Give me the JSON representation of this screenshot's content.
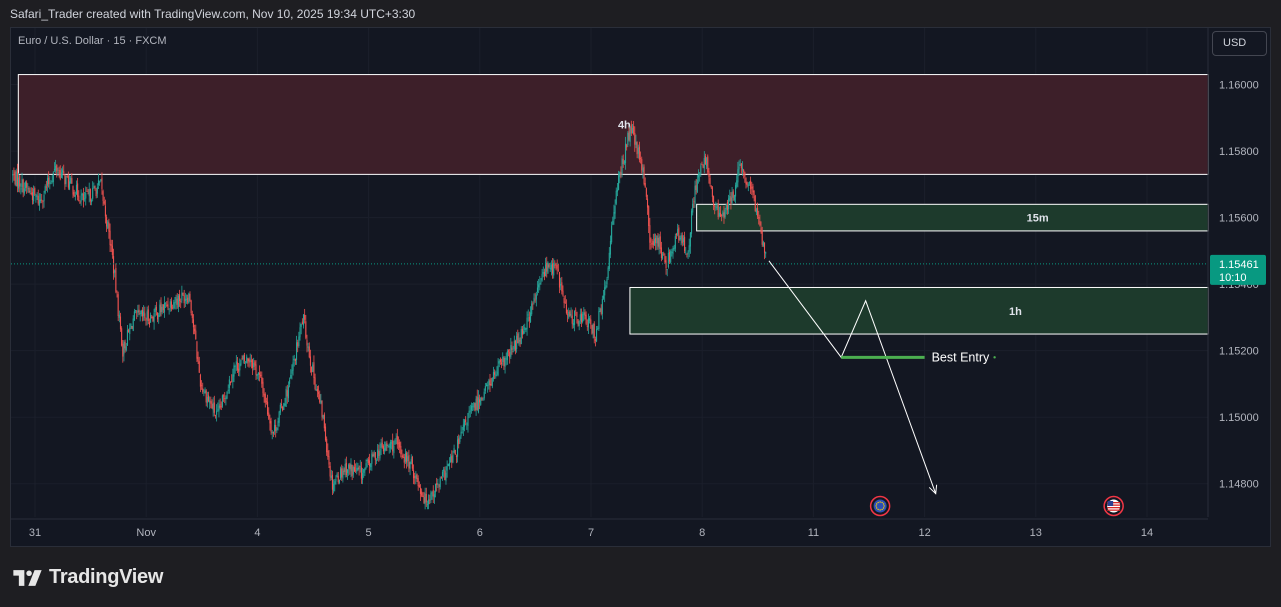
{
  "header": {
    "attribution": "Safari_Trader created with TradingView.com, Nov 10, 2025 19:34 UTC+3:30",
    "symbol_title": "Euro / U.S. Dollar · 15 · FXCM",
    "currency_button": "USD"
  },
  "brand": {
    "name": "TradingView"
  },
  "colors": {
    "background": "#131722",
    "up_candle": "#26a69a",
    "down_candle": "#ef5350",
    "zone_4h": "#3d1f29",
    "zone_demand": "#1d3a2c",
    "best_entry": "#4caf50",
    "price_badge": "#089981"
  },
  "chart_data": {
    "type": "candlestick",
    "symbol": "Euro / U.S. Dollar",
    "timeframe": "15",
    "source": "FXCM",
    "x_axis": {
      "tick_labels": [
        {
          "label": "31",
          "day": 0
        },
        {
          "label": "Nov",
          "day": 1
        },
        {
          "label": "4",
          "day": 2
        },
        {
          "label": "5",
          "day": 3
        },
        {
          "label": "6",
          "day": 4
        },
        {
          "label": "7",
          "day": 5
        },
        {
          "label": "8",
          "day": 6
        },
        {
          "label": "11",
          "day": 7
        },
        {
          "label": "12",
          "day": 8
        },
        {
          "label": "13",
          "day": 9
        },
        {
          "label": "14",
          "day": 10
        }
      ]
    },
    "y_axis": {
      "ylim": [
        1.147,
        1.1617
      ],
      "tick_labels": [
        "1.16000",
        "1.15800",
        "1.15600",
        "1.15400",
        "1.15200",
        "1.15000",
        "1.14800"
      ],
      "tick_values": [
        1.16,
        1.158,
        1.156,
        1.154,
        1.152,
        1.15,
        1.148
      ]
    },
    "price_path": [
      [
        -0.2,
        1.1573
      ],
      [
        0.05,
        1.1565
      ],
      [
        0.2,
        1.1575
      ],
      [
        0.45,
        1.1565
      ],
      [
        0.6,
        1.157
      ],
      [
        0.7,
        1.155
      ],
      [
        0.8,
        1.152
      ],
      [
        0.9,
        1.153
      ],
      [
        1.05,
        1.153
      ],
      [
        1.25,
        1.1535
      ],
      [
        1.4,
        1.1537
      ],
      [
        1.5,
        1.151
      ],
      [
        1.65,
        1.15
      ],
      [
        1.8,
        1.1515
      ],
      [
        1.95,
        1.1518
      ],
      [
        2.05,
        1.151
      ],
      [
        2.15,
        1.1495
      ],
      [
        2.3,
        1.151
      ],
      [
        2.42,
        1.153
      ],
      [
        2.5,
        1.1515
      ],
      [
        2.6,
        1.15
      ],
      [
        2.68,
        1.148
      ],
      [
        2.8,
        1.1485
      ],
      [
        2.95,
        1.1483
      ],
      [
        3.1,
        1.149
      ],
      [
        3.25,
        1.1492
      ],
      [
        3.4,
        1.1485
      ],
      [
        3.52,
        1.1475
      ],
      [
        3.65,
        1.148
      ],
      [
        3.8,
        1.149
      ],
      [
        3.9,
        1.15
      ],
      [
        4.0,
        1.1505
      ],
      [
        4.15,
        1.1513
      ],
      [
        4.3,
        1.152
      ],
      [
        4.45,
        1.153
      ],
      [
        4.6,
        1.1545
      ],
      [
        4.7,
        1.1545
      ],
      [
        4.8,
        1.153
      ],
      [
        4.95,
        1.153
      ],
      [
        5.05,
        1.1525
      ],
      [
        5.15,
        1.154
      ],
      [
        5.2,
        1.156
      ],
      [
        5.3,
        1.1578
      ],
      [
        5.37,
        1.1587
      ],
      [
        5.45,
        1.1577
      ],
      [
        5.5,
        1.157
      ],
      [
        5.55,
        1.155
      ],
      [
        5.6,
        1.1555
      ],
      [
        5.68,
        1.1545
      ],
      [
        5.78,
        1.1555
      ],
      [
        5.88,
        1.155
      ],
      [
        5.95,
        1.157
      ],
      [
        6.05,
        1.1578
      ],
      [
        6.1,
        1.1565
      ],
      [
        6.17,
        1.156
      ],
      [
        6.27,
        1.1565
      ],
      [
        6.35,
        1.1575
      ],
      [
        6.42,
        1.157
      ],
      [
        6.48,
        1.1565
      ],
      [
        6.53,
        1.1558
      ],
      [
        6.58,
        1.1548
      ]
    ],
    "zones": [
      {
        "label": "4h",
        "day_from": -0.15,
        "day_to": 10.55,
        "price_from": 1.1573,
        "price_to": 1.1603
      },
      {
        "label": "15m",
        "day_from": 5.95,
        "day_to": 10.55,
        "price_from": 1.1556,
        "price_to": 1.1564
      },
      {
        "label": "1h",
        "day_from": 5.35,
        "day_to": 10.55,
        "price_from": 1.1525,
        "price_to": 1.1539
      }
    ],
    "projection_path": [
      [
        6.6,
        1.1547
      ],
      [
        7.25,
        1.1518
      ],
      [
        7.47,
        1.1535
      ],
      [
        8.1,
        1.1477
      ]
    ],
    "best_entry": {
      "label": "Best Entry",
      "price": 1.1518,
      "day_from": 7.25,
      "day_to": 8.0
    },
    "last_price": {
      "value": "1.15461",
      "price": 1.15461,
      "countdown": "10:10"
    },
    "events": [
      {
        "day": 7.6,
        "flag": "EU"
      },
      {
        "day": 9.7,
        "flag": "US"
      }
    ]
  }
}
